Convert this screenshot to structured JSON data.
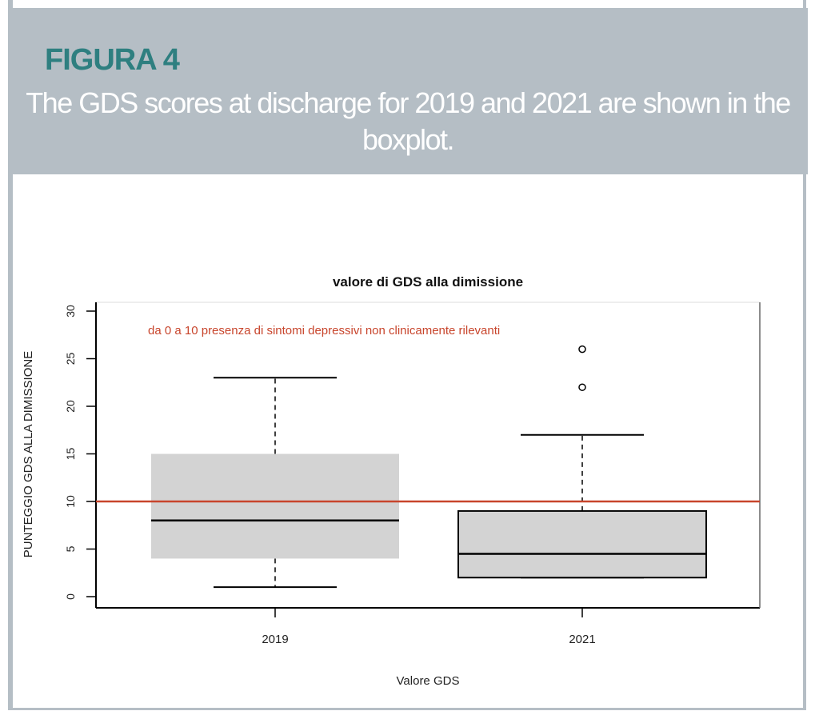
{
  "header": {
    "figure_label": "FIGURA 4",
    "caption": "The GDS scores at discharge for 2019 and 2021 are shown in the boxplot."
  },
  "colors": {
    "header_bg": "#b5bec5",
    "figure_label": "#2e7f80",
    "reference_line": "#c8452c",
    "box_fill": "#d3d3d3"
  },
  "chart_data": {
    "type": "boxplot",
    "title": "valore di GDS alla dimissione",
    "xlabel": "Valore GDS",
    "ylabel": "PUNTEGGIO GDS ALLA DIMISSIONE",
    "ylim": [
      0,
      30
    ],
    "yticks": [
      0,
      5,
      10,
      15,
      20,
      25,
      30
    ],
    "categories": [
      "2019",
      "2021"
    ],
    "boxes": [
      {
        "name": "2019",
        "whisker_low": 1,
        "q1": 4,
        "median": 8,
        "q3": 15,
        "whisker_high": 23,
        "outliers": []
      },
      {
        "name": "2021",
        "whisker_low": 2,
        "q1": 2,
        "median": 4.5,
        "q3": 9,
        "whisker_high": 17,
        "outliers": [
          22,
          26
        ]
      }
    ],
    "reference_line": {
      "y": 10,
      "label": "da 0 a 10 presenza di sintomi depressivi non clinicamente rilevanti"
    },
    "grid": false
  }
}
